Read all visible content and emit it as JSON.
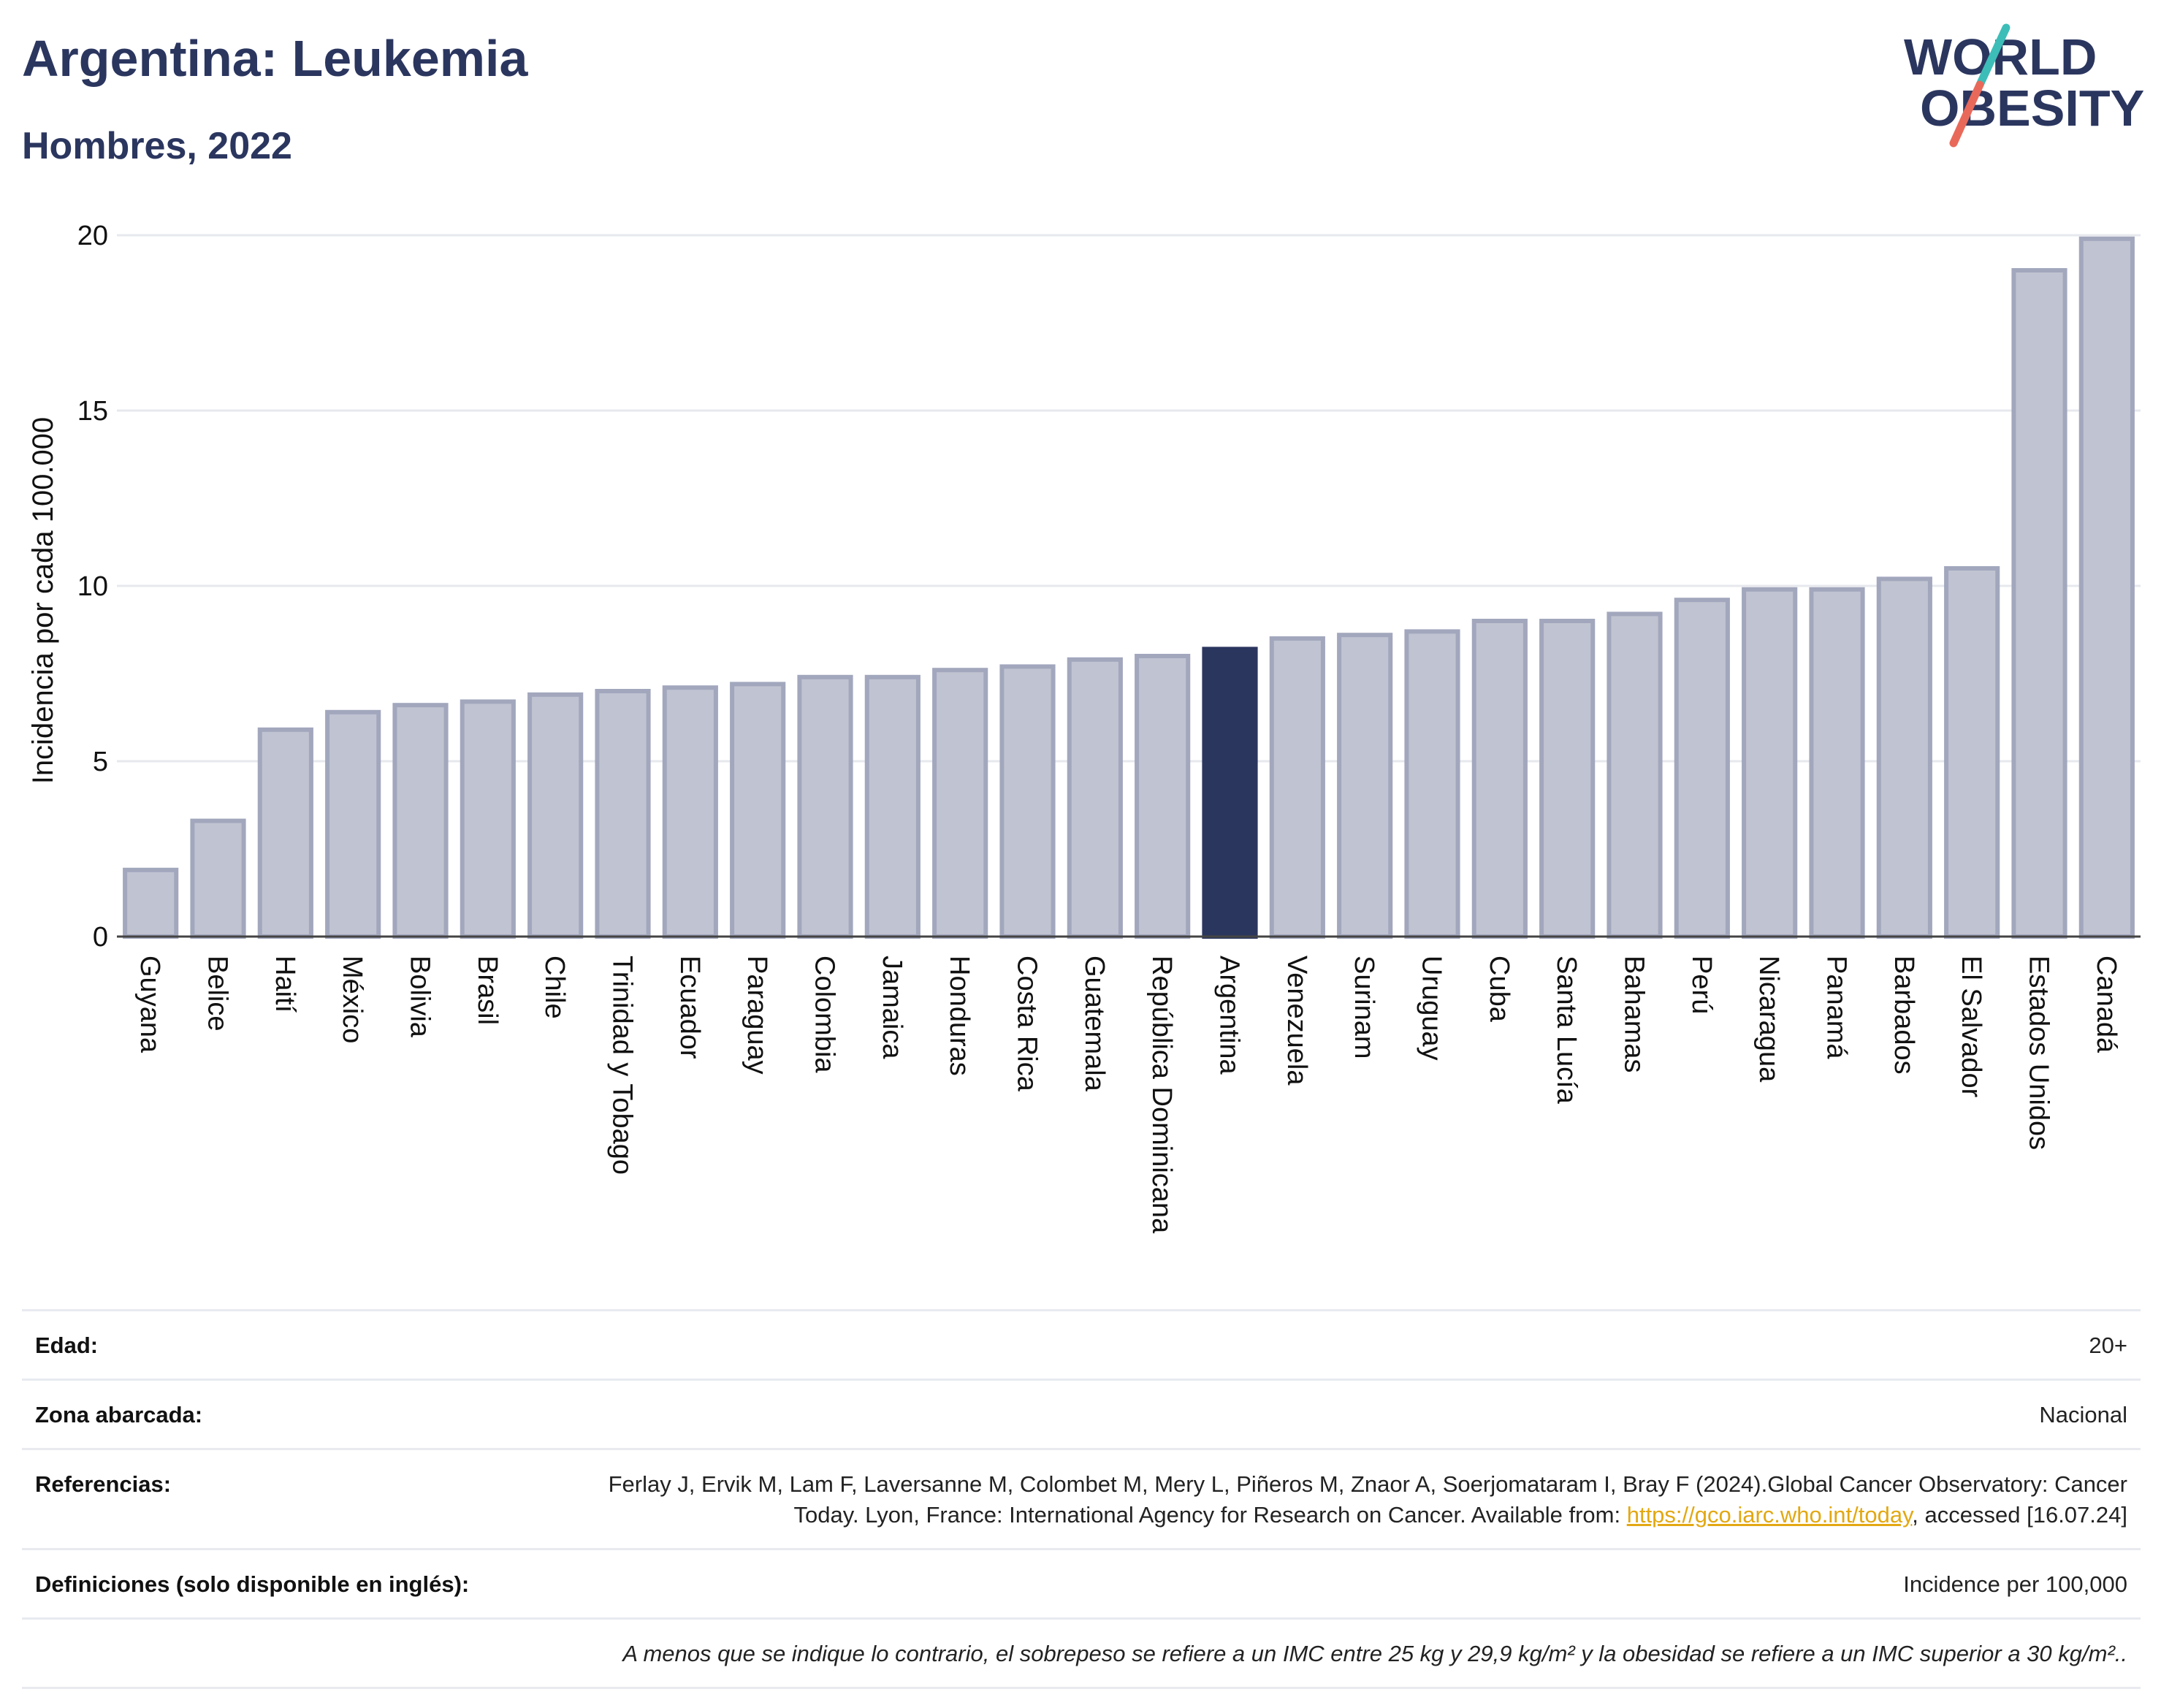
{
  "header": {
    "title": "Argentina: Leukemia",
    "subtitle": "Hombres, 2022"
  },
  "logo": {
    "line1": "WORLD",
    "line2": "OBESITY",
    "accent_teal": "#3dbdb8",
    "accent_red": "#e8695a",
    "text_color": "#2b365f"
  },
  "colors": {
    "bar": "#c0c3d1",
    "bar_border": "#a2a7bd",
    "highlight": "#2b365f"
  },
  "chart_data": {
    "type": "bar",
    "ylabel": "Incidencia por cada 100.000",
    "ylim": [
      0,
      20
    ],
    "yticks": [
      0,
      5,
      10,
      15,
      20
    ],
    "grid": true,
    "highlight": "Argentina",
    "categories": [
      "Guyana",
      "Belice",
      "Haití",
      "México",
      "Bolivia",
      "Brasil",
      "Chile",
      "Trinidad y Tobago",
      "Ecuador",
      "Paraguay",
      "Colombia",
      "Jamaica",
      "Honduras",
      "Costa Rica",
      "Guatemala",
      "República Dominicana",
      "Argentina",
      "Venezuela",
      "Surinam",
      "Uruguay",
      "Cuba",
      "Santa Lucía",
      "Bahamas",
      "Perú",
      "Nicaragua",
      "Panamá",
      "Barbados",
      "El Salvador",
      "Estados Unidos",
      "Canadá"
    ],
    "values": [
      1.9,
      3.3,
      5.9,
      6.4,
      6.6,
      6.7,
      6.9,
      7.0,
      7.1,
      7.2,
      7.4,
      7.4,
      7.6,
      7.7,
      7.9,
      8.0,
      8.2,
      8.5,
      8.6,
      8.7,
      9.0,
      9.0,
      9.2,
      9.6,
      9.9,
      9.9,
      10.2,
      10.5,
      19.0,
      19.9
    ]
  },
  "info": {
    "age_label": "Edad:",
    "age_value": "20+",
    "zone_label": "Zona abarcada:",
    "zone_value": "Nacional",
    "ref_label": "Referencias:",
    "ref_text_1": "Ferlay J, Ervik M, Lam F, Laversanne M, Colombet M, Mery L, Piñeros M, Znaor A, Soerjomataram I, Bray F (2024).Global Cancer Observatory: Cancer Today. Lyon, France: International Agency for Research on Cancer. Available from: ",
    "ref_link": "https://gco.iarc.who.int/today",
    "ref_text_2": ", accessed [16.07.24]",
    "def_label": "Definiciones (solo disponible en inglés):",
    "def_value": "Incidence per 100,000",
    "note": "A menos que se indique lo contrario, el sobrepeso se refiere a un IMC entre 25 kg y 29,9 kg/m² y la obesidad se refiere a un IMC superior a 30 kg/m².."
  }
}
